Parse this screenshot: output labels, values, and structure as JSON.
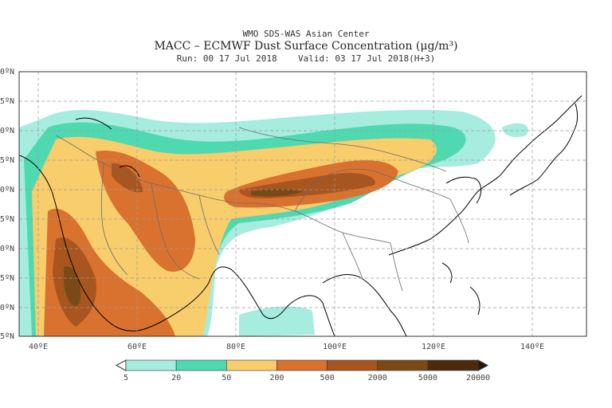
{
  "header": {
    "center": "WMO SDS-WAS Asian Center",
    "title": "MACC – ECMWF Dust Surface Concentration (μg/m³)",
    "run_valid": "Run: 00 17 Jul 2018    Valid: 03 17 Jul 2018(H+3)"
  },
  "map": {
    "lat_labels": [
      "50ºN",
      "45ºN",
      "40ºN",
      "35ºN",
      "30ºN",
      "25ºN",
      "20ºN",
      "15ºN",
      "10ºN",
      "5ºN"
    ],
    "lon_labels": [
      "40ºE",
      "60ºE",
      "80ºE",
      "100ºE",
      "120ºE",
      "140ºE"
    ],
    "colors": {
      "ocean": "#ffffff",
      "coast": "#000000",
      "border": "#777777",
      "grid": "#9a9a9a"
    }
  },
  "colorbar": {
    "bins": [
      {
        "color": "#a6ecdf"
      },
      {
        "color": "#4fd9b1"
      },
      {
        "color": "#f8cd6c"
      },
      {
        "color": "#d9722f"
      },
      {
        "color": "#a8551f"
      },
      {
        "color": "#7a4a16"
      },
      {
        "color": "#4b2a0e"
      }
    ],
    "under_color": "#ffffff",
    "over_color": "#2b1708",
    "labels": [
      "5",
      "20",
      "50",
      "200",
      "500",
      "2000",
      "5000",
      "20000"
    ]
  }
}
